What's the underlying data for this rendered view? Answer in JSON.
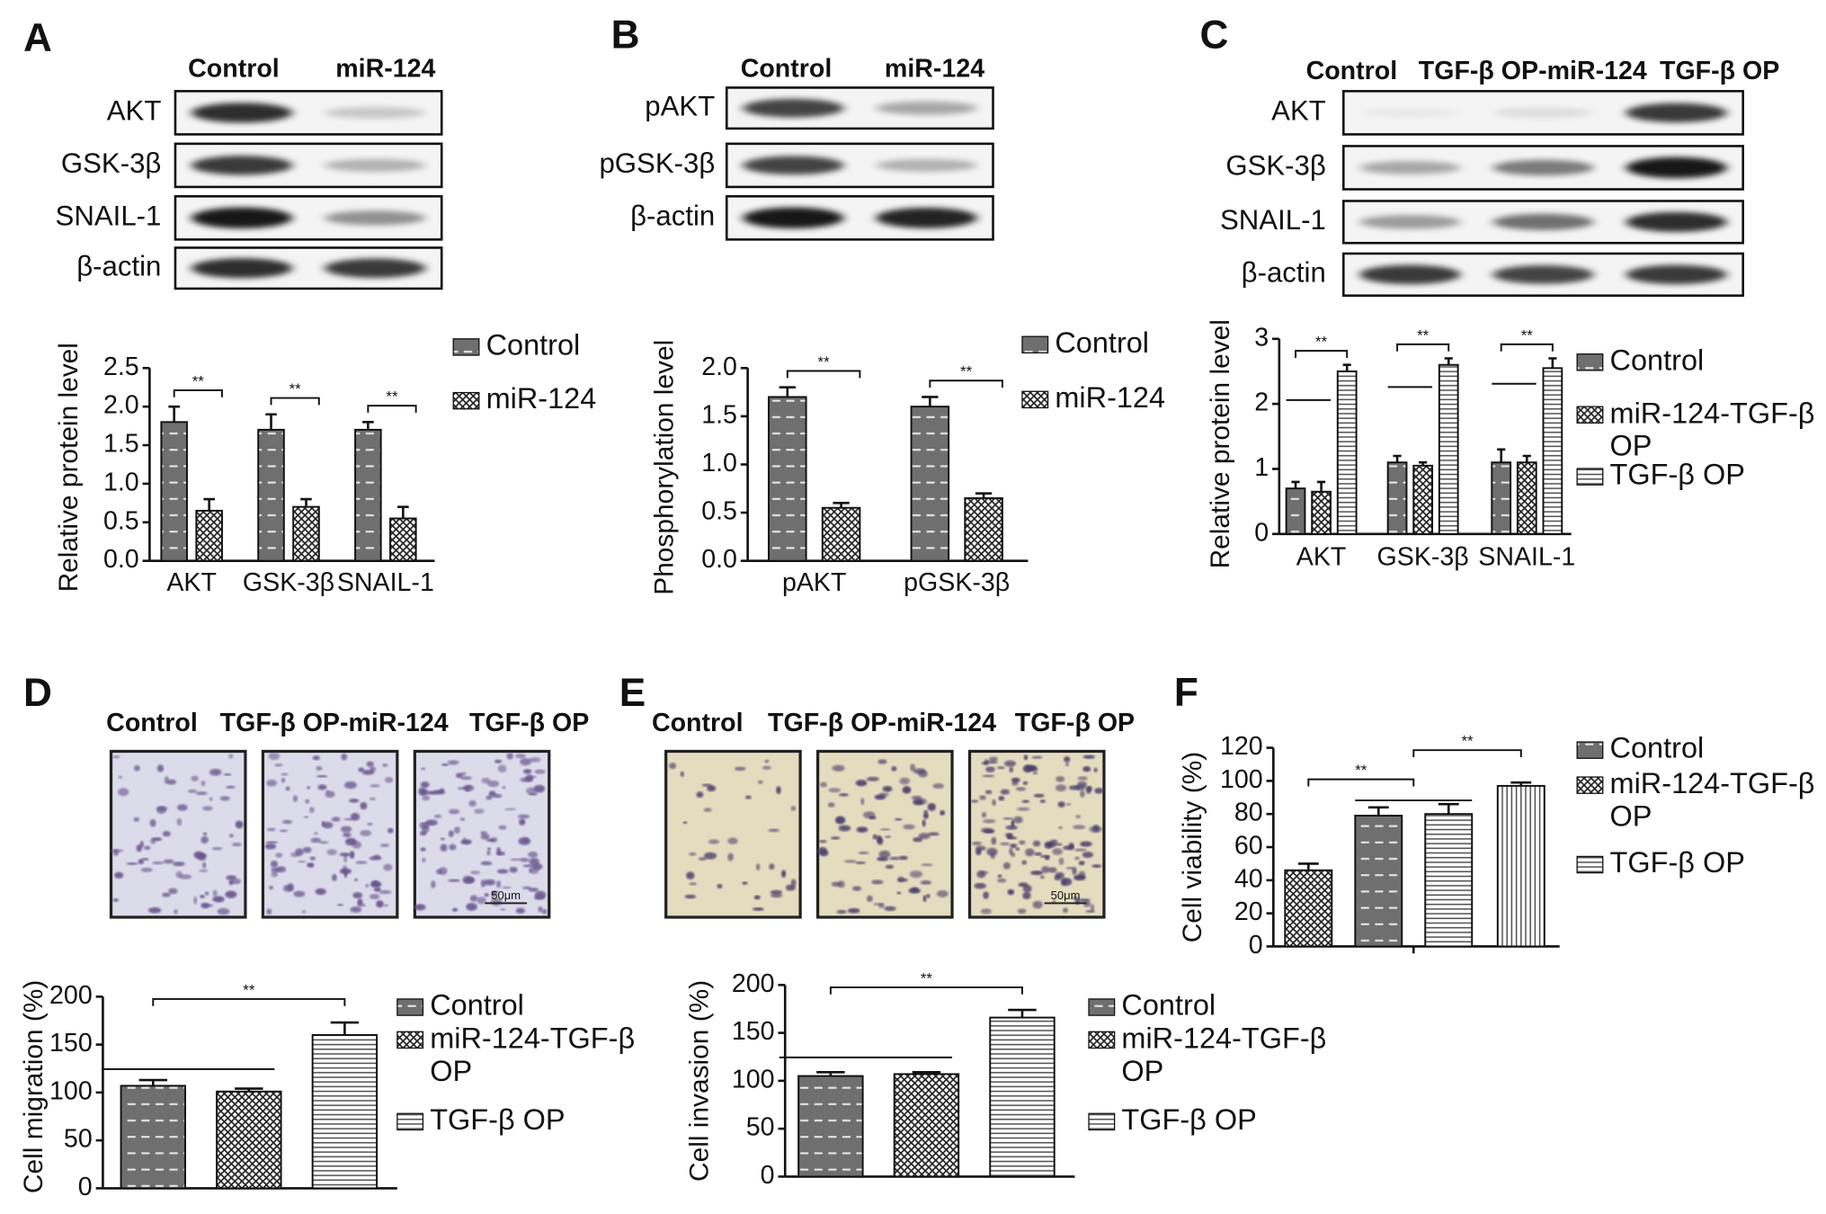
{
  "chart_data": [
    {
      "panel": "A",
      "type": "bar",
      "blot_lanes": [
        "Control",
        "miR-124"
      ],
      "blot_rows": [
        "AKT",
        "GSK-3β",
        "SNAIL-1",
        "β-actin"
      ],
      "categories": [
        "AKT",
        "GSK-3β",
        "SNAIL-1"
      ],
      "series": [
        {
          "name": "Control",
          "pattern": "dashed",
          "values": [
            1.8,
            1.7,
            1.7
          ],
          "errors": [
            0.2,
            0.2,
            0.1
          ]
        },
        {
          "name": "miR-124",
          "pattern": "crosshatch",
          "values": [
            0.65,
            0.7,
            0.55
          ],
          "errors": [
            0.15,
            0.1,
            0.15
          ]
        }
      ],
      "ylabel": "Relative protein level",
      "ylim": [
        0,
        2.5
      ],
      "yticks": [
        {
          "value": 0,
          "label": "0.0"
        },
        0.5,
        {
          "value": 1,
          "label": "1.0"
        },
        1.5,
        {
          "value": 2,
          "label": "2.0"
        },
        2.5
      ],
      "annotations": [
        "**",
        "**",
        "**"
      ]
    },
    {
      "panel": "B",
      "type": "bar",
      "blot_lanes": [
        "Control",
        "miR-124"
      ],
      "blot_rows": [
        "pAKT",
        "pGSK-3β",
        "β-actin"
      ],
      "categories": [
        "pAKT",
        "pGSK-3β"
      ],
      "series": [
        {
          "name": "Control",
          "pattern": "dashed",
          "values": [
            1.7,
            1.6
          ],
          "errors": [
            0.1,
            0.1
          ]
        },
        {
          "name": "miR-124",
          "pattern": "crosshatch",
          "values": [
            0.55,
            0.65
          ],
          "errors": [
            0.05,
            0.05
          ]
        }
      ],
      "ylabel": "Phosphorylation level",
      "ylim": [
        0,
        2
      ],
      "yticks": [
        {
          "value": 0,
          "label": "0.0"
        },
        0.5,
        {
          "value": 1,
          "label": "1.0"
        },
        1.5,
        {
          "value": 2,
          "label": "2.0"
        }
      ],
      "annotations": [
        "**",
        "**"
      ]
    },
    {
      "panel": "C",
      "type": "bar",
      "blot_lanes": [
        "Control",
        "TGF-β OP-miR-124",
        "TGF-β OP"
      ],
      "blot_rows": [
        "AKT",
        "GSK-3β",
        "SNAIL-1",
        "β-actin"
      ],
      "categories": [
        "AKT",
        "GSK-3β",
        "SNAIL-1"
      ],
      "series": [
        {
          "name": "Control",
          "pattern": "dashed",
          "values": [
            0.7,
            1.1,
            1.1
          ],
          "errors": [
            0.1,
            0.1,
            0.2
          ]
        },
        {
          "name": "miR-124-TGF-β OP",
          "pattern": "crosshatch",
          "values": [
            0.65,
            1.05,
            1.1
          ],
          "errors": [
            0.15,
            0.05,
            0.1
          ]
        },
        {
          "name": "TGF-β OP",
          "pattern": "hstripes",
          "values": [
            2.5,
            2.6,
            2.55
          ],
          "errors": [
            0.1,
            0.1,
            0.15
          ]
        }
      ],
      "ylabel": "Relative protein level",
      "ylim": [
        0,
        3
      ],
      "yticks": [
        0,
        1,
        2,
        3
      ],
      "annotations": [
        "**",
        "**",
        "**"
      ]
    },
    {
      "panel": "D",
      "type": "bar",
      "image_lanes": [
        "Control",
        "TGF-β OP-miR-124",
        "TGF-β OP"
      ],
      "scale_bar": "50μm",
      "categories": [
        null
      ],
      "series": [
        {
          "name": "Control",
          "pattern": "dashed",
          "values": [
            107
          ],
          "errors": [
            6
          ]
        },
        {
          "name": "miR-124-TGF-β OP",
          "pattern": "crosshatch",
          "values": [
            101
          ],
          "errors": [
            3
          ]
        },
        {
          "name": "TGF-β OP",
          "pattern": "hstripes",
          "values": [
            160
          ],
          "errors": [
            13
          ]
        }
      ],
      "ylabel": "Cell migration (%)",
      "ylim": [
        0,
        200
      ],
      "yticks": [
        0,
        50,
        100,
        150,
        200
      ],
      "annotations": [
        "**"
      ]
    },
    {
      "panel": "E",
      "type": "bar",
      "image_lanes": [
        "Control",
        "TGF-β OP-miR-124",
        "TGF-β OP"
      ],
      "scale_bar": "50μm",
      "categories": [
        null
      ],
      "series": [
        {
          "name": "Control",
          "pattern": "dashed",
          "values": [
            105
          ],
          "errors": [
            4
          ]
        },
        {
          "name": "miR-124-TGF-β OP",
          "pattern": "crosshatch",
          "values": [
            107
          ],
          "errors": [
            2
          ]
        },
        {
          "name": "TGF-β OP",
          "pattern": "hstripes",
          "values": [
            166
          ],
          "errors": [
            8
          ]
        }
      ],
      "ylabel": "Cell invasion (%)",
      "ylim": [
        0,
        200
      ],
      "yticks": [
        0,
        50,
        100,
        150,
        200
      ],
      "annotations": [
        "**"
      ]
    },
    {
      "panel": "F",
      "type": "bar",
      "categories": [
        null,
        null,
        null,
        null
      ],
      "values": [
        46,
        79,
        80,
        97
      ],
      "errors": [
        4,
        5,
        6,
        2
      ],
      "patterns": [
        "crosshatch",
        "dashed",
        "hstripes",
        "vstripes"
      ],
      "legend": [
        {
          "name": "Control",
          "pattern": "dashed"
        },
        {
          "name": "miR-124-TGF-β OP",
          "pattern": "crosshatch"
        },
        {
          "name": "TGF-β OP",
          "pattern": "hstripes"
        }
      ],
      "ylabel": "Cell viability (%)",
      "ylim": [
        0,
        120
      ],
      "yticks": [
        0,
        20,
        40,
        60,
        80,
        100,
        120
      ],
      "annotations": [
        "**",
        "**"
      ]
    }
  ]
}
